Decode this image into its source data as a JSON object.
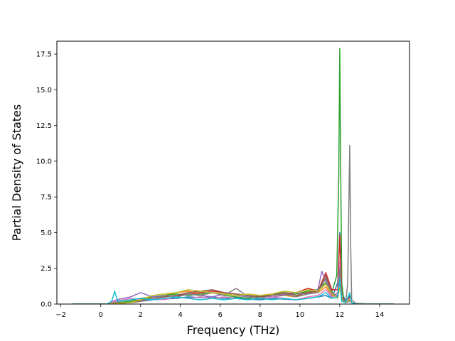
{
  "chart_data": {
    "type": "line",
    "title": "",
    "xlabel": "Frequency (THz)",
    "ylabel": "Partial Density of States",
    "xlim": [
      -2.2,
      15.5
    ],
    "ylim": [
      0,
      18.4
    ],
    "xticks": [
      -2,
      0,
      2,
      4,
      6,
      8,
      10,
      12,
      14
    ],
    "yticks": [
      0.0,
      2.5,
      5.0,
      7.5,
      10.0,
      12.5,
      15.0,
      17.5
    ],
    "xtick_labels": [
      "−2",
      "0",
      "2",
      "4",
      "6",
      "8",
      "10",
      "12",
      "14"
    ],
    "ytick_labels": [
      "0.0",
      "2.5",
      "5.0",
      "7.5",
      "10.0",
      "12.5",
      "15.0",
      "17.5"
    ],
    "grid": false,
    "legend": false,
    "series": [
      {
        "color": "#1f77b4",
        "x": [
          -1.4,
          0.3,
          0.8,
          1.5,
          2.0,
          2.6,
          3.2,
          3.8,
          4.4,
          5.0,
          5.6,
          6.2,
          6.8,
          7.4,
          8.0,
          8.6,
          9.2,
          9.8,
          10.4,
          10.9,
          11.3,
          11.6,
          11.9,
          12.0,
          12.1,
          12.3,
          12.5,
          12.6,
          12.8,
          13.5,
          14.7
        ],
        "y": [
          0,
          0,
          0.15,
          0.1,
          0.2,
          0.3,
          0.35,
          0.4,
          0.5,
          0.45,
          0.5,
          0.4,
          0.45,
          0.35,
          0.3,
          0.4,
          0.35,
          0.3,
          0.4,
          0.5,
          0.6,
          0.4,
          1.5,
          5.0,
          0.8,
          0.2,
          0.6,
          0.1,
          0.05,
          0,
          0
        ]
      },
      {
        "color": "#ff7f0e",
        "x": [
          -1.4,
          0.3,
          0.8,
          1.5,
          2.0,
          2.6,
          3.2,
          3.8,
          4.4,
          5.0,
          5.6,
          6.2,
          6.8,
          7.4,
          8.0,
          8.6,
          9.2,
          9.8,
          10.4,
          10.9,
          11.3,
          11.6,
          11.9,
          12.0,
          12.1,
          12.3,
          12.5,
          12.6,
          12.8,
          13.5,
          14.7
        ],
        "y": [
          0,
          0,
          0.1,
          0.2,
          0.3,
          0.5,
          0.6,
          0.8,
          0.9,
          0.7,
          0.8,
          0.7,
          0.6,
          0.5,
          0.6,
          0.7,
          0.6,
          0.5,
          0.9,
          0.8,
          1.2,
          0.6,
          0.5,
          2.0,
          0.3,
          0.1,
          0.4,
          0.1,
          0,
          0,
          0
        ]
      },
      {
        "color": "#2ca02c",
        "x": [
          -1.4,
          0.3,
          0.8,
          1.5,
          2.0,
          2.6,
          3.2,
          3.8,
          4.4,
          5.0,
          5.6,
          6.2,
          6.8,
          7.4,
          8.0,
          8.6,
          9.2,
          9.8,
          10.4,
          10.9,
          11.3,
          11.6,
          11.85,
          11.95,
          12.0,
          12.05,
          12.1,
          12.2,
          12.3,
          12.5,
          12.6,
          12.8,
          13.5,
          14.7
        ],
        "y": [
          0,
          0,
          0.1,
          0.2,
          0.4,
          0.5,
          0.6,
          0.7,
          0.6,
          0.7,
          0.8,
          0.6,
          0.5,
          0.4,
          0.5,
          0.6,
          0.8,
          0.7,
          0.9,
          1.0,
          1.5,
          0.8,
          2.0,
          9.0,
          17.9,
          9.0,
          1.5,
          0.3,
          0.1,
          0.5,
          0.1,
          0,
          0,
          0
        ]
      },
      {
        "color": "#d62728",
        "x": [
          -1.4,
          0.3,
          0.8,
          1.5,
          2.0,
          2.6,
          3.2,
          3.8,
          4.4,
          5.0,
          5.6,
          6.2,
          6.8,
          7.4,
          8.0,
          8.6,
          9.2,
          9.8,
          10.4,
          10.9,
          11.3,
          11.6,
          11.9,
          12.0,
          12.1,
          12.3,
          12.5,
          12.6,
          12.8,
          13.5,
          14.7
        ],
        "y": [
          0,
          0,
          0.05,
          0.1,
          0.3,
          0.4,
          0.5,
          0.6,
          0.7,
          0.8,
          0.9,
          0.8,
          0.7,
          0.6,
          0.5,
          0.6,
          0.7,
          0.8,
          1.1,
          0.9,
          2.2,
          1.0,
          1.0,
          4.8,
          0.5,
          0.1,
          0.3,
          0.1,
          0,
          0,
          0
        ]
      },
      {
        "color": "#9467bd",
        "x": [
          -1.4,
          0.3,
          0.8,
          1.5,
          2.0,
          2.6,
          3.2,
          3.8,
          4.4,
          5.0,
          5.6,
          6.2,
          6.8,
          7.4,
          8.0,
          8.6,
          9.2,
          9.8,
          10.4,
          10.9,
          11.1,
          11.3,
          11.6,
          11.9,
          12.0,
          12.1,
          12.3,
          12.5,
          12.6,
          12.8,
          13.5,
          14.7
        ],
        "y": [
          0,
          0,
          0.3,
          0.5,
          0.8,
          0.5,
          0.6,
          0.5,
          0.7,
          0.6,
          0.5,
          0.7,
          0.6,
          0.5,
          0.6,
          0.5,
          0.6,
          0.8,
          0.7,
          1.0,
          2.3,
          1.6,
          0.5,
          0.8,
          1.5,
          0.2,
          0.1,
          0.2,
          0.1,
          0,
          0,
          0
        ]
      },
      {
        "color": "#8c564b",
        "x": [
          -1.4,
          0.3,
          0.8,
          1.5,
          2.0,
          2.6,
          3.2,
          3.8,
          4.4,
          5.0,
          5.6,
          6.2,
          6.8,
          7.4,
          8.0,
          8.6,
          9.2,
          9.8,
          10.4,
          10.9,
          11.3,
          11.6,
          11.9,
          12.0,
          12.1,
          12.3,
          12.5,
          12.6,
          12.8,
          13.5,
          14.7
        ],
        "y": [
          0,
          0,
          0.05,
          0.1,
          0.2,
          0.4,
          0.5,
          0.6,
          0.8,
          0.9,
          1.0,
          0.8,
          0.7,
          0.6,
          0.5,
          0.7,
          0.8,
          0.6,
          0.8,
          0.9,
          2.0,
          0.8,
          0.5,
          1.8,
          0.4,
          0.1,
          0.5,
          0.1,
          0,
          0,
          0
        ]
      },
      {
        "color": "#e377c2",
        "x": [
          -1.4,
          0.3,
          0.8,
          1.5,
          2.0,
          2.6,
          3.2,
          3.8,
          4.4,
          5.0,
          5.6,
          6.2,
          6.8,
          7.4,
          8.0,
          8.6,
          9.2,
          9.8,
          10.4,
          10.9,
          11.3,
          11.6,
          11.9,
          12.0,
          12.1,
          12.3,
          12.5,
          12.6,
          12.8,
          13.5,
          14.7
        ],
        "y": [
          0,
          0,
          0.2,
          0.4,
          0.3,
          0.4,
          0.3,
          0.5,
          0.4,
          0.5,
          0.4,
          0.5,
          0.4,
          0.3,
          0.4,
          0.5,
          0.4,
          0.3,
          0.5,
          0.6,
          1.0,
          0.5,
          0.6,
          3.0,
          0.3,
          0.1,
          0.4,
          0.1,
          0,
          0,
          0
        ]
      },
      {
        "color": "#7f7f7f",
        "x": [
          -1.4,
          0.3,
          0.8,
          1.5,
          2.0,
          2.6,
          3.2,
          3.8,
          4.4,
          5.0,
          5.6,
          6.2,
          6.8,
          7.4,
          8.0,
          8.6,
          9.2,
          9.8,
          10.4,
          10.9,
          11.3,
          11.6,
          11.9,
          12.0,
          12.1,
          12.3,
          12.4,
          12.5,
          12.55,
          12.6,
          12.8,
          13.5,
          14.7
        ],
        "y": [
          0,
          0,
          0.1,
          0.1,
          0.3,
          0.4,
          0.6,
          0.5,
          0.7,
          0.6,
          0.8,
          0.6,
          1.1,
          0.5,
          0.4,
          0.6,
          0.7,
          0.5,
          0.7,
          0.8,
          1.8,
          0.7,
          0.6,
          2.5,
          0.4,
          0.1,
          1.5,
          11.1,
          4.0,
          0.3,
          0.05,
          0,
          0
        ]
      },
      {
        "color": "#bcbd22",
        "x": [
          -1.4,
          0.3,
          0.8,
          1.5,
          2.0,
          2.6,
          3.2,
          3.8,
          4.4,
          5.0,
          5.6,
          6.2,
          6.8,
          7.4,
          8.0,
          8.6,
          9.2,
          9.8,
          10.4,
          10.9,
          11.3,
          11.6,
          11.9,
          12.0,
          12.1,
          12.3,
          12.5,
          12.6,
          12.8,
          13.5,
          14.7
        ],
        "y": [
          0,
          0,
          0.05,
          0.1,
          0.3,
          0.6,
          0.7,
          0.8,
          1.0,
          0.9,
          0.8,
          0.7,
          0.6,
          0.7,
          0.6,
          0.7,
          0.9,
          0.8,
          1.0,
          0.9,
          1.4,
          0.7,
          0.4,
          1.2,
          0.3,
          0.1,
          0.3,
          0.1,
          0,
          0,
          0
        ]
      },
      {
        "color": "#17becf",
        "x": [
          -1.4,
          0.3,
          0.55,
          0.7,
          0.85,
          1.5,
          2.0,
          2.6,
          3.2,
          3.8,
          4.4,
          5.0,
          5.6,
          6.2,
          6.8,
          7.4,
          8.0,
          8.6,
          9.2,
          9.8,
          10.4,
          10.9,
          11.3,
          11.6,
          11.9,
          12.0,
          12.1,
          12.3,
          12.5,
          12.6,
          12.8,
          13.5,
          14.7
        ],
        "y": [
          0,
          0,
          0.2,
          0.9,
          0.2,
          0.3,
          0.4,
          0.3,
          0.4,
          0.5,
          0.4,
          0.3,
          0.4,
          0.3,
          0.4,
          0.3,
          0.4,
          0.3,
          0.4,
          0.3,
          0.4,
          0.5,
          0.8,
          0.4,
          0.5,
          1.8,
          0.2,
          0.1,
          0.8,
          0.1,
          0,
          0,
          0
        ]
      }
    ]
  }
}
